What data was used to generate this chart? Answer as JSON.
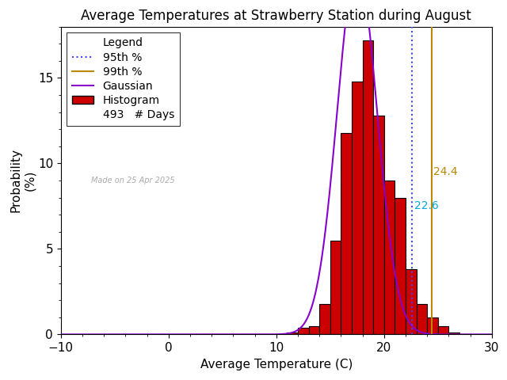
{
  "title": "Average Temperatures at Strawberry Station during August",
  "xlabel": "Average Temperature (C)",
  "ylabel": "Probability\n(%)",
  "xlim": [
    -10,
    30
  ],
  "ylim": [
    0,
    18
  ],
  "xticks": [
    -10,
    0,
    10,
    20,
    30
  ],
  "yticks": [
    0,
    5,
    10,
    15
  ],
  "mean": 17.5,
  "std": 1.85,
  "bin_edges": [
    11,
    12,
    13,
    14,
    15,
    16,
    17,
    18,
    19,
    20,
    21,
    22,
    23,
    24,
    25,
    26,
    27,
    28
  ],
  "bin_heights": [
    0.1,
    0.4,
    0.5,
    1.8,
    5.5,
    11.8,
    14.8,
    17.2,
    12.8,
    9.0,
    8.0,
    3.8,
    1.8,
    1.0,
    0.5,
    0.1,
    0.0
  ],
  "percentile_95": 22.6,
  "percentile_99": 24.4,
  "n_days": 493,
  "made_on": "Made on 25 Apr 2025",
  "color_hist": "#cc0000",
  "color_hist_edge": "#000000",
  "color_gaussian": "#8800cc",
  "color_95": "#4444ff",
  "color_99": "#bb8800",
  "color_95_label": "#00aadd",
  "color_99_label": "#bb8800",
  "background_color": "#ffffff",
  "title_fontsize": 12,
  "axis_fontsize": 11,
  "tick_fontsize": 11,
  "legend_fontsize": 10,
  "watermark_color": "#aaaaaa"
}
